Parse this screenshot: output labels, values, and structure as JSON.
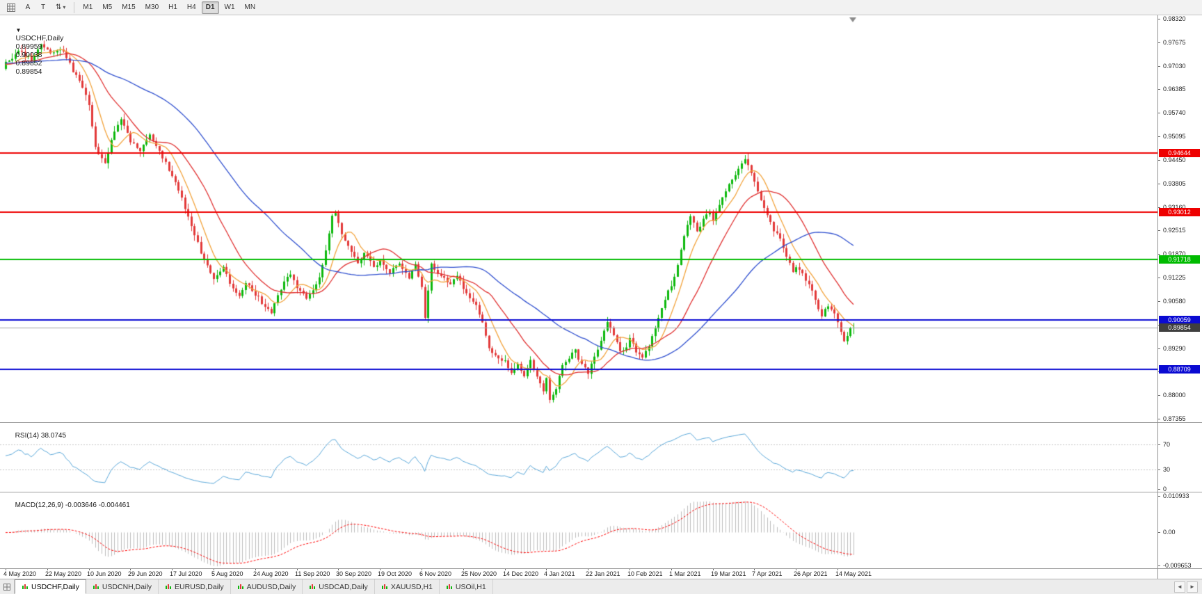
{
  "icons": {
    "symbol_dropdown": "▼",
    "updown": "⇅",
    "caret": "▾",
    "scroll_left": "◄",
    "scroll_right": "►"
  },
  "toolbar": {
    "a_label": "A",
    "t_label": "T",
    "timeframes": [
      "M1",
      "M5",
      "M15",
      "M30",
      "H1",
      "H4",
      "D1",
      "W1",
      "MN"
    ],
    "active_timeframe": "D1"
  },
  "chart": {
    "title_symbol": "USDCHF,Daily",
    "ohlc": {
      "open": "0.89959",
      "high": "0.90038",
      "low": "0.89852",
      "close": "0.89854"
    },
    "price_axis_ticks": [
      "0.98320",
      "0.97675",
      "0.97030",
      "0.96385",
      "0.95740",
      "0.95095",
      "0.94450",
      "0.93805",
      "0.93160",
      "0.92515",
      "0.91870",
      "0.91225",
      "0.90580",
      "0.89935",
      "0.89290",
      "0.88645",
      "0.88000",
      "0.87355"
    ],
    "levels": [
      {
        "price": 0.94644,
        "label": "0.94644",
        "color": "#ee0000",
        "type": "resistance"
      },
      {
        "price": 0.93012,
        "label": "0.93012",
        "color": "#ee0000",
        "type": "resistance"
      },
      {
        "price": 0.91718,
        "label": "0.91718",
        "color": "#00bb00",
        "type": "pivot"
      },
      {
        "price": 0.90059,
        "label": "0.90059",
        "color": "#0a0ad2",
        "type": "support"
      },
      {
        "price": 0.88709,
        "label": "0.88709",
        "color": "#0a0ad2",
        "type": "support"
      }
    ],
    "current_price": {
      "value": 0.89854,
      "label": "0.89854",
      "badge_color": "#3f3f3f",
      "line_color": "#a6a6a6"
    }
  },
  "rsi": {
    "label": "RSI(14)",
    "value": "38.0745",
    "ticks": [
      "70",
      "30",
      "0"
    ],
    "levels": [
      70,
      30
    ],
    "range": [
      0,
      100
    ],
    "line_color": "#58a6d8"
  },
  "macd": {
    "label": "MACD(12,26,9)",
    "value_main": "-0.003646",
    "value_signal": "-0.004461",
    "ticks": [
      "0.010933",
      "0.00",
      "-0.009653"
    ],
    "range": [
      -0.009653,
      0.010933
    ],
    "histogram_color": "#bdbdbd",
    "signal_color": "#ff0000"
  },
  "date_axis": [
    "4 May 2020",
    "22 May 2020",
    "10 Jun 2020",
    "29 Jun 2020",
    "17 Jul 2020",
    "5 Aug 2020",
    "24 Aug 2020",
    "11 Sep 2020",
    "30 Sep 2020",
    "19 Oct 2020",
    "6 Nov 2020",
    "25 Nov 2020",
    "14 Dec 2020",
    "4 Jan 2021",
    "22 Jan 2021",
    "10 Feb 2021",
    "1 Mar 2021",
    "19 Mar 2021",
    "7 Apr 2021",
    "26 Apr 2021",
    "14 May 2021"
  ],
  "tabs": {
    "items": [
      "USDCHF,Daily",
      "USDCNH,Daily",
      "EURUSD,Daily",
      "AUDUSD,Daily",
      "USDCAD,Daily",
      "XAUUSD,H1",
      "USOil,H1"
    ],
    "active": "USDCHF,Daily"
  },
  "chart_data": {
    "type": "candlestick",
    "symbol": "USDCHF",
    "timeframe": "D1",
    "title": "USDCHF,Daily",
    "bar_count": 266,
    "price_range": [
      0.87355,
      0.9832
    ],
    "up_color": "#0db80d",
    "down_color": "#e23a3a",
    "moving_averages": [
      {
        "period": 8,
        "color": "#f2a33c"
      },
      {
        "period": 20,
        "color": "#e03030"
      },
      {
        "period": 50,
        "color": "#3050cf"
      }
    ],
    "indicators": {
      "rsi_period": 14,
      "macd": [
        12,
        26,
        9
      ]
    },
    "waypoints": [
      [
        0,
        0.971
      ],
      [
        4,
        0.9742
      ],
      [
        8,
        0.972
      ],
      [
        11,
        0.9762
      ],
      [
        14,
        0.9738
      ],
      [
        18,
        0.9744
      ],
      [
        21,
        0.969
      ],
      [
        24,
        0.9648
      ],
      [
        26,
        0.96
      ],
      [
        28,
        0.9478
      ],
      [
        31,
        0.9438
      ],
      [
        34,
        0.9528
      ],
      [
        36,
        0.9552
      ],
      [
        39,
        0.9498
      ],
      [
        42,
        0.9472
      ],
      [
        45,
        0.9512
      ],
      [
        48,
        0.9465
      ],
      [
        52,
        0.9405
      ],
      [
        55,
        0.934
      ],
      [
        58,
        0.9262
      ],
      [
        61,
        0.9192
      ],
      [
        63,
        0.9152
      ],
      [
        65,
        0.9122
      ],
      [
        68,
        0.9152
      ],
      [
        70,
        0.9102
      ],
      [
        73,
        0.9068
      ],
      [
        75,
        0.9112
      ],
      [
        78,
        0.9078
      ],
      [
        81,
        0.9042
      ],
      [
        83,
        0.9028
      ],
      [
        86,
        0.9092
      ],
      [
        89,
        0.9135
      ],
      [
        91,
        0.9092
      ],
      [
        94,
        0.9068
      ],
      [
        96,
        0.9088
      ],
      [
        98,
        0.9122
      ],
      [
        100,
        0.92
      ],
      [
        102,
        0.9288
      ],
      [
        103,
        0.9298
      ],
      [
        105,
        0.9242
      ],
      [
        107,
        0.9212
      ],
      [
        110,
        0.9162
      ],
      [
        112,
        0.919
      ],
      [
        115,
        0.9152
      ],
      [
        117,
        0.9166
      ],
      [
        120,
        0.9138
      ],
      [
        123,
        0.9158
      ],
      [
        126,
        0.9122
      ],
      [
        128,
        0.9156
      ],
      [
        130,
        0.9102
      ],
      [
        131,
        0.9015
      ],
      [
        133,
        0.9158
      ],
      [
        136,
        0.9122
      ],
      [
        139,
        0.9106
      ],
      [
        141,
        0.9126
      ],
      [
        143,
        0.9096
      ],
      [
        145,
        0.9062
      ],
      [
        147,
        0.9042
      ],
      [
        149,
        0.9002
      ],
      [
        151,
        0.8932
      ],
      [
        153,
        0.8906
      ],
      [
        156,
        0.8896
      ],
      [
        158,
        0.8858
      ],
      [
        160,
        0.8882
      ],
      [
        162,
        0.8852
      ],
      [
        164,
        0.8892
      ],
      [
        166,
        0.8856
      ],
      [
        168,
        0.8816
      ],
      [
        169,
        0.8842
      ],
      [
        170,
        0.8782
      ],
      [
        172,
        0.8822
      ],
      [
        174,
        0.8882
      ],
      [
        176,
        0.8902
      ],
      [
        178,
        0.8922
      ],
      [
        180,
        0.8882
      ],
      [
        182,
        0.8862
      ],
      [
        184,
        0.8902
      ],
      [
        186,
        0.8952
      ],
      [
        188,
        0.9002
      ],
      [
        190,
        0.8962
      ],
      [
        192,
        0.8922
      ],
      [
        194,
        0.8932
      ],
      [
        195,
        0.8956
      ],
      [
        197,
        0.8922
      ],
      [
        199,
        0.8902
      ],
      [
        201,
        0.8936
      ],
      [
        203,
        0.8982
      ],
      [
        205,
        0.9042
      ],
      [
        207,
        0.9082
      ],
      [
        208,
        0.9096
      ],
      [
        210,
        0.9162
      ],
      [
        212,
        0.9232
      ],
      [
        214,
        0.9292
      ],
      [
        216,
        0.9252
      ],
      [
        218,
        0.9282
      ],
      [
        220,
        0.9302
      ],
      [
        221,
        0.9282
      ],
      [
        223,
        0.9322
      ],
      [
        225,
        0.9362
      ],
      [
        227,
        0.9392
      ],
      [
        229,
        0.9422
      ],
      [
        231,
        0.9442
      ],
      [
        233,
        0.9412
      ],
      [
        234,
        0.9382
      ],
      [
        236,
        0.9332
      ],
      [
        238,
        0.9292
      ],
      [
        240,
        0.9252
      ],
      [
        242,
        0.9232
      ],
      [
        244,
        0.9182
      ],
      [
        246,
        0.9142
      ],
      [
        247,
        0.9152
      ],
      [
        249,
        0.9132
      ],
      [
        251,
        0.9106
      ],
      [
        253,
        0.9062
      ],
      [
        255,
        0.9016
      ],
      [
        257,
        0.9046
      ],
      [
        259,
        0.9026
      ],
      [
        260,
        0.9002
      ],
      [
        261,
        0.8976
      ],
      [
        262,
        0.8952
      ],
      [
        263,
        0.8966
      ],
      [
        264,
        0.8986
      ],
      [
        265,
        0.89854
      ]
    ]
  }
}
